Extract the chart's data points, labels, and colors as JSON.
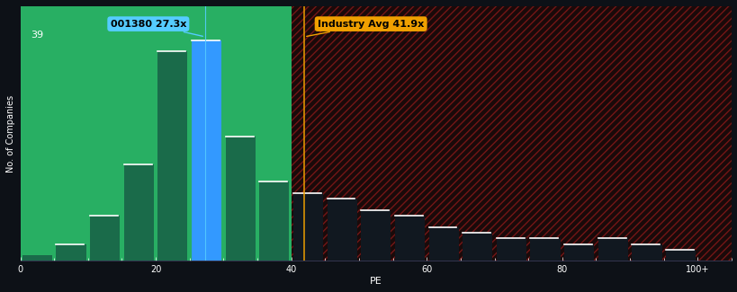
{
  "background_color": "#0d1117",
  "left_bg_color": "#2ecc71",
  "right_bg_color": "#1a0a0a",
  "bar_bins": [
    0,
    5,
    10,
    15,
    20,
    25,
    30,
    35,
    40,
    45,
    50,
    55,
    60,
    65,
    70,
    75,
    80,
    85,
    90,
    95,
    100
  ],
  "bar_values": [
    1,
    3,
    8,
    17,
    37,
    39,
    22,
    14,
    12,
    11,
    9,
    8,
    6,
    5,
    4,
    4,
    3,
    4,
    3,
    2
  ],
  "bar_colors_left": "#1a6b4a",
  "bar_color_blue": "#3399ff",
  "bar_colors_right": "#1a0a0a",
  "blue_bar_index": 5,
  "pe_line_value": 27.3,
  "industry_avg_value": 41.9,
  "ylabel": "No. of Companies",
  "xlabel": "PE",
  "x_ticks": [
    0,
    20,
    40,
    60,
    80,
    100
  ],
  "x_tick_labels": [
    "0",
    "20",
    "40",
    "60",
    "80",
    "100+"
  ],
  "y_max": 45,
  "y_label_39": 39,
  "annotation_pe_text": "001380 27.3x",
  "annotation_ind_text": "Industry Avg 41.9x",
  "annotation_pe_color": "#55ccff",
  "annotation_ind_color": "#f0a000",
  "text_color": "#ffffff",
  "hatch_color": "#cc2222"
}
